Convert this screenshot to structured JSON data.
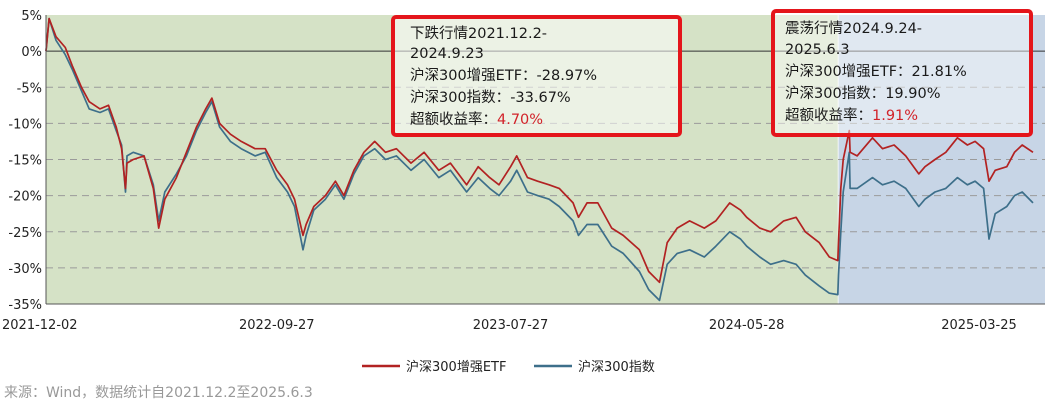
{
  "chart_data": {
    "type": "line",
    "y_ticks": [
      "5%",
      "0%",
      "-5%",
      "-10%",
      "-15%",
      "-20%",
      "-25%",
      "-30%",
      "-35%"
    ],
    "ylim": [
      -35,
      5
    ],
    "x_ticks": [
      "2021-12-02",
      "2022-09-27",
      "2023-07-27",
      "2024-05-28",
      "2025-03-25"
    ],
    "grid": true,
    "series": [
      {
        "name": "沪深300增强ETF",
        "color": "#b22222",
        "points": [
          [
            "2021-12-02",
            0.0
          ],
          [
            "2021-12-06",
            4.5
          ],
          [
            "2021-12-15",
            2.0
          ],
          [
            "2021-12-27",
            0.5
          ],
          [
            "2022-01-05",
            -2.0
          ],
          [
            "2022-01-17",
            -5.0
          ],
          [
            "2022-01-27",
            -7.0
          ],
          [
            "2022-02-10",
            -8.0
          ],
          [
            "2022-02-21",
            -7.5
          ],
          [
            "2022-03-03",
            -10.5
          ],
          [
            "2022-03-10",
            -13.5
          ],
          [
            "2022-03-15",
            -19.0
          ],
          [
            "2022-03-17",
            -15.5
          ],
          [
            "2022-03-25",
            -15.0
          ],
          [
            "2022-04-08",
            -14.5
          ],
          [
            "2022-04-20",
            -19.0
          ],
          [
            "2022-04-27",
            -24.5
          ],
          [
            "2022-05-05",
            -20.5
          ],
          [
            "2022-05-20",
            -17.5
          ],
          [
            "2022-06-02",
            -14.0
          ],
          [
            "2022-06-15",
            -10.5
          ],
          [
            "2022-06-27",
            -8.0
          ],
          [
            "2022-07-05",
            -6.5
          ],
          [
            "2022-07-15",
            -10.0
          ],
          [
            "2022-07-29",
            -11.5
          ],
          [
            "2022-08-12",
            -12.5
          ],
          [
            "2022-08-30",
            -13.5
          ],
          [
            "2022-09-12",
            -13.5
          ],
          [
            "2022-09-27",
            -16.5
          ],
          [
            "2022-10-11",
            -18.5
          ],
          [
            "2022-10-20",
            -20.5
          ],
          [
            "2022-10-31",
            -25.5
          ],
          [
            "2022-11-04",
            -24.0
          ],
          [
            "2022-11-14",
            -21.5
          ],
          [
            "2022-11-29",
            -20.0
          ],
          [
            "2022-12-12",
            -18.0
          ],
          [
            "2022-12-23",
            -20.0
          ],
          [
            "2023-01-05",
            -16.5
          ],
          [
            "2023-01-18",
            -14.0
          ],
          [
            "2023-02-01",
            -12.5
          ],
          [
            "2023-02-15",
            -14.0
          ],
          [
            "2023-03-01",
            -13.5
          ],
          [
            "2023-03-20",
            -15.5
          ],
          [
            "2023-04-06",
            -14.0
          ],
          [
            "2023-04-25",
            -16.5
          ],
          [
            "2023-05-10",
            -15.5
          ],
          [
            "2023-05-31",
            -18.5
          ],
          [
            "2023-06-15",
            -16.0
          ],
          [
            "2023-06-30",
            -17.5
          ],
          [
            "2023-07-12",
            -18.5
          ],
          [
            "2023-07-27",
            -16.0
          ],
          [
            "2023-08-04",
            -14.5
          ],
          [
            "2023-08-18",
            -17.5
          ],
          [
            "2023-08-31",
            -18.0
          ],
          [
            "2023-09-15",
            -18.5
          ],
          [
            "2023-09-28",
            -19.0
          ],
          [
            "2023-10-16",
            -21.0
          ],
          [
            "2023-10-23",
            -23.0
          ],
          [
            "2023-11-03",
            -21.0
          ],
          [
            "2023-11-17",
            -21.0
          ],
          [
            "2023-12-05",
            -24.5
          ],
          [
            "2023-12-20",
            -25.5
          ],
          [
            "2024-01-10",
            -27.5
          ],
          [
            "2024-01-22",
            -30.5
          ],
          [
            "2024-02-05",
            -32.0
          ],
          [
            "2024-02-15",
            -26.5
          ],
          [
            "2024-02-28",
            -24.5
          ],
          [
            "2024-03-15",
            -23.5
          ],
          [
            "2024-04-03",
            -24.5
          ],
          [
            "2024-04-18",
            -23.5
          ],
          [
            "2024-05-06",
            -21.0
          ],
          [
            "2024-05-20",
            -22.0
          ],
          [
            "2024-05-28",
            -23.0
          ],
          [
            "2024-06-14",
            -24.5
          ],
          [
            "2024-06-28",
            -25.0
          ],
          [
            "2024-07-15",
            -23.5
          ],
          [
            "2024-07-31",
            -23.0
          ],
          [
            "2024-08-12",
            -25.0
          ],
          [
            "2024-08-30",
            -26.5
          ],
          [
            "2024-09-12",
            -28.5
          ],
          [
            "2024-09-23",
            -29.0
          ],
          [
            "2024-09-24",
            -26.5
          ],
          [
            "2024-09-27",
            -19.0
          ],
          [
            "2024-09-30",
            -15.0
          ],
          [
            "2024-10-08",
            -11.0
          ],
          [
            "2024-10-09",
            -14.0
          ],
          [
            "2024-10-18",
            -14.5
          ],
          [
            "2024-11-07",
            -12.0
          ],
          [
            "2024-11-20",
            -13.5
          ],
          [
            "2024-12-05",
            -13.0
          ],
          [
            "2024-12-20",
            -14.5
          ],
          [
            "2025-01-06",
            -17.0
          ],
          [
            "2025-01-14",
            -16.0
          ],
          [
            "2025-01-27",
            -15.0
          ],
          [
            "2025-02-10",
            -14.0
          ],
          [
            "2025-02-25",
            -12.0
          ],
          [
            "2025-03-10",
            -13.0
          ],
          [
            "2025-03-20",
            -12.5
          ],
          [
            "2025-03-31",
            -13.5
          ],
          [
            "2025-04-07",
            -18.0
          ],
          [
            "2025-04-15",
            -16.5
          ],
          [
            "2025-04-30",
            -16.0
          ],
          [
            "2025-05-10",
            -14.0
          ],
          [
            "2025-05-20",
            -13.0
          ],
          [
            "2025-06-03",
            -14.0
          ]
        ]
      },
      {
        "name": "沪深300指数",
        "color": "#3d6f8a",
        "points": [
          [
            "2021-12-02",
            0.0
          ],
          [
            "2021-12-06",
            4.5
          ],
          [
            "2021-12-15",
            1.5
          ],
          [
            "2021-12-27",
            -0.5
          ],
          [
            "2022-01-05",
            -2.5
          ],
          [
            "2022-01-17",
            -5.5
          ],
          [
            "2022-01-27",
            -8.0
          ],
          [
            "2022-02-10",
            -8.5
          ],
          [
            "2022-02-21",
            -8.0
          ],
          [
            "2022-03-03",
            -11.0
          ],
          [
            "2022-03-10",
            -13.0
          ],
          [
            "2022-03-15",
            -19.5
          ],
          [
            "2022-03-17",
            -14.5
          ],
          [
            "2022-03-25",
            -14.0
          ],
          [
            "2022-04-08",
            -14.5
          ],
          [
            "2022-04-20",
            -18.5
          ],
          [
            "2022-04-27",
            -23.5
          ],
          [
            "2022-05-05",
            -19.5
          ],
          [
            "2022-05-20",
            -17.0
          ],
          [
            "2022-06-02",
            -14.5
          ],
          [
            "2022-06-15",
            -11.0
          ],
          [
            "2022-06-27",
            -8.5
          ],
          [
            "2022-07-05",
            -7.0
          ],
          [
            "2022-07-15",
            -10.5
          ],
          [
            "2022-07-29",
            -12.5
          ],
          [
            "2022-08-12",
            -13.5
          ],
          [
            "2022-08-30",
            -14.5
          ],
          [
            "2022-09-12",
            -14.0
          ],
          [
            "2022-09-27",
            -17.5
          ],
          [
            "2022-10-11",
            -19.5
          ],
          [
            "2022-10-20",
            -21.5
          ],
          [
            "2022-10-31",
            -27.5
          ],
          [
            "2022-11-04",
            -25.5
          ],
          [
            "2022-11-14",
            -22.0
          ],
          [
            "2022-11-29",
            -20.5
          ],
          [
            "2022-12-12",
            -18.5
          ],
          [
            "2022-12-23",
            -20.5
          ],
          [
            "2023-01-05",
            -17.0
          ],
          [
            "2023-01-18",
            -14.5
          ],
          [
            "2023-02-01",
            -13.5
          ],
          [
            "2023-02-15",
            -15.0
          ],
          [
            "2023-03-01",
            -14.5
          ],
          [
            "2023-03-20",
            -16.5
          ],
          [
            "2023-04-06",
            -15.0
          ],
          [
            "2023-04-25",
            -17.5
          ],
          [
            "2023-05-10",
            -16.5
          ],
          [
            "2023-05-31",
            -19.5
          ],
          [
            "2023-06-15",
            -17.5
          ],
          [
            "2023-06-30",
            -19.0
          ],
          [
            "2023-07-12",
            -20.0
          ],
          [
            "2023-07-27",
            -18.0
          ],
          [
            "2023-08-04",
            -16.5
          ],
          [
            "2023-08-18",
            -19.5
          ],
          [
            "2023-08-31",
            -20.0
          ],
          [
            "2023-09-15",
            -20.5
          ],
          [
            "2023-09-28",
            -21.5
          ],
          [
            "2023-10-16",
            -23.5
          ],
          [
            "2023-10-23",
            -25.5
          ],
          [
            "2023-11-03",
            -24.0
          ],
          [
            "2023-11-17",
            -24.0
          ],
          [
            "2023-12-05",
            -27.0
          ],
          [
            "2023-12-20",
            -28.0
          ],
          [
            "2024-01-10",
            -30.5
          ],
          [
            "2024-01-22",
            -33.0
          ],
          [
            "2024-02-05",
            -34.5
          ],
          [
            "2024-02-15",
            -29.5
          ],
          [
            "2024-02-28",
            -28.0
          ],
          [
            "2024-03-15",
            -27.5
          ],
          [
            "2024-04-03",
            -28.5
          ],
          [
            "2024-04-18",
            -27.0
          ],
          [
            "2024-05-06",
            -25.0
          ],
          [
            "2024-05-20",
            -26.0
          ],
          [
            "2024-05-28",
            -27.0
          ],
          [
            "2024-06-14",
            -28.5
          ],
          [
            "2024-06-28",
            -29.5
          ],
          [
            "2024-07-15",
            -29.0
          ],
          [
            "2024-07-31",
            -29.5
          ],
          [
            "2024-08-12",
            -31.0
          ],
          [
            "2024-08-30",
            -32.5
          ],
          [
            "2024-09-12",
            -33.5
          ],
          [
            "2024-09-23",
            -33.7
          ],
          [
            "2024-09-24",
            -31.0
          ],
          [
            "2024-09-27",
            -25.0
          ],
          [
            "2024-09-30",
            -19.5
          ],
          [
            "2024-10-08",
            -14.0
          ],
          [
            "2024-10-09",
            -19.0
          ],
          [
            "2024-10-18",
            -19.0
          ],
          [
            "2024-11-07",
            -17.5
          ],
          [
            "2024-11-20",
            -18.5
          ],
          [
            "2024-12-05",
            -18.0
          ],
          [
            "2024-12-20",
            -19.0
          ],
          [
            "2025-01-06",
            -21.5
          ],
          [
            "2025-01-14",
            -20.5
          ],
          [
            "2025-01-27",
            -19.5
          ],
          [
            "2025-02-10",
            -19.0
          ],
          [
            "2025-02-25",
            -17.5
          ],
          [
            "2025-03-10",
            -18.5
          ],
          [
            "2025-03-20",
            -18.0
          ],
          [
            "2025-03-31",
            -19.0
          ],
          [
            "2025-04-07",
            -26.0
          ],
          [
            "2025-04-15",
            -22.5
          ],
          [
            "2025-04-30",
            -21.5
          ],
          [
            "2025-05-10",
            -20.0
          ],
          [
            "2025-05-20",
            -19.5
          ],
          [
            "2025-06-03",
            -21.0
          ]
        ]
      }
    ],
    "regions": [
      {
        "start": "2021-12-02",
        "end": "2024-09-23",
        "color": "#d5e2c6"
      },
      {
        "start": "2024-09-24",
        "end": "2025-06-03",
        "color": "#c7d5e6"
      }
    ],
    "annotations": [
      {
        "line1": "下跌行情2021.12.2-",
        "line2": "2024.9.23",
        "etf_label": "沪深300增强ETF：",
        "etf_value": "-28.97%",
        "index_label": "沪深300指数：",
        "index_value": "-33.67%",
        "excess_label": "超额收益率：",
        "excess_value": "4.70%"
      },
      {
        "line1": "震荡行情2024.9.24-",
        "line2": "2025.6.3",
        "etf_label": "沪深300增强ETF：",
        "etf_value": "21.81%",
        "index_label": "沪深300指数：",
        "index_value": "19.90%",
        "excess_label": "超额收益率：",
        "excess_value": "1.91%"
      }
    ],
    "legend": {
      "position": "bottom-center"
    },
    "source": "来源：Wind，数据统计自2021.12.2至2025.6.3",
    "colors": {
      "box_border": "#e4151b",
      "excess_value": "#d2232a",
      "zero_line": "#333333",
      "grid": "#9a9a9a"
    }
  }
}
